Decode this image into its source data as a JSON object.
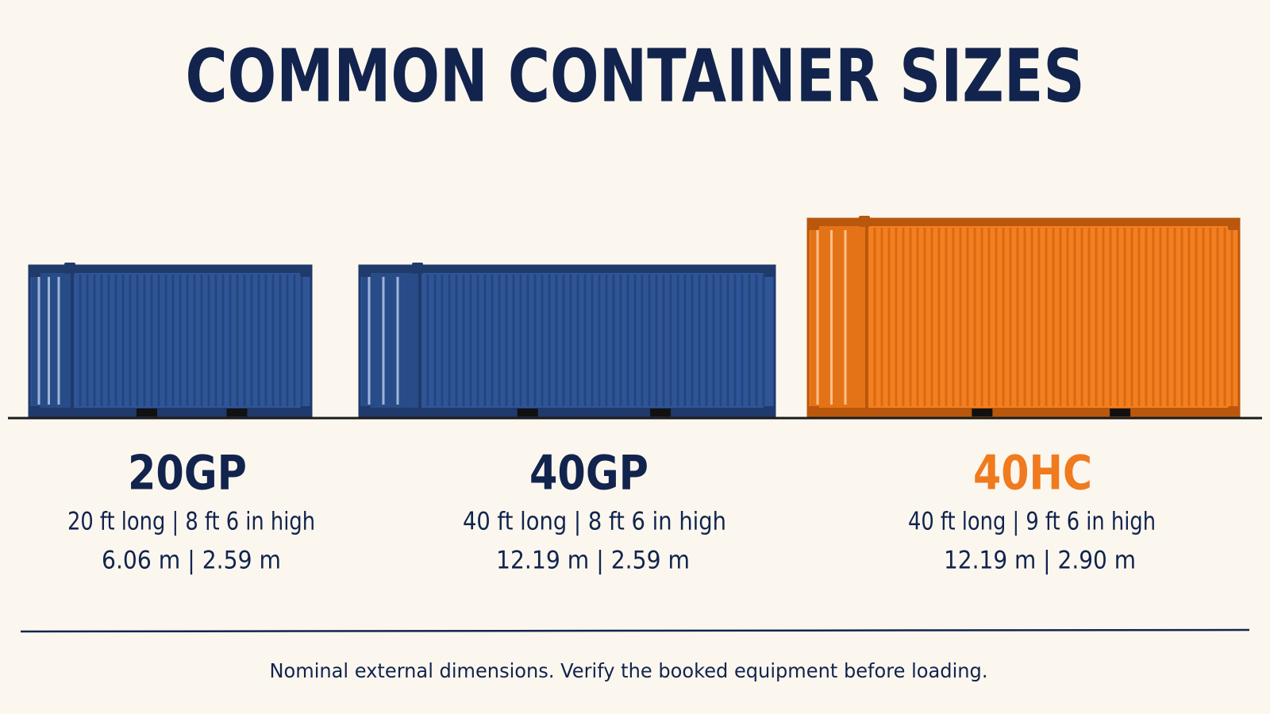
{
  "title": "COMMON CONTAINER SIZES",
  "containers": [
    {
      "name": "20GP",
      "dimensions_imperial": "20 ft long | 8 ft 6 in high",
      "dimensions_metric": "6.06 m | 2.59 m"
    },
    {
      "name": "40GP",
      "dimensions_imperial": "40 ft long | 8 ft 6 in high",
      "dimensions_metric": "12.19 m | 2.59 m"
    },
    {
      "name": "40HC",
      "dimensions_imperial": "40 ft long | 9 ft 6 in high",
      "dimensions_metric": "12.19 m | 2.90 m"
    }
  ],
  "footnote": "Nominal external dimensions. Verify the booked equipment before loading."
}
